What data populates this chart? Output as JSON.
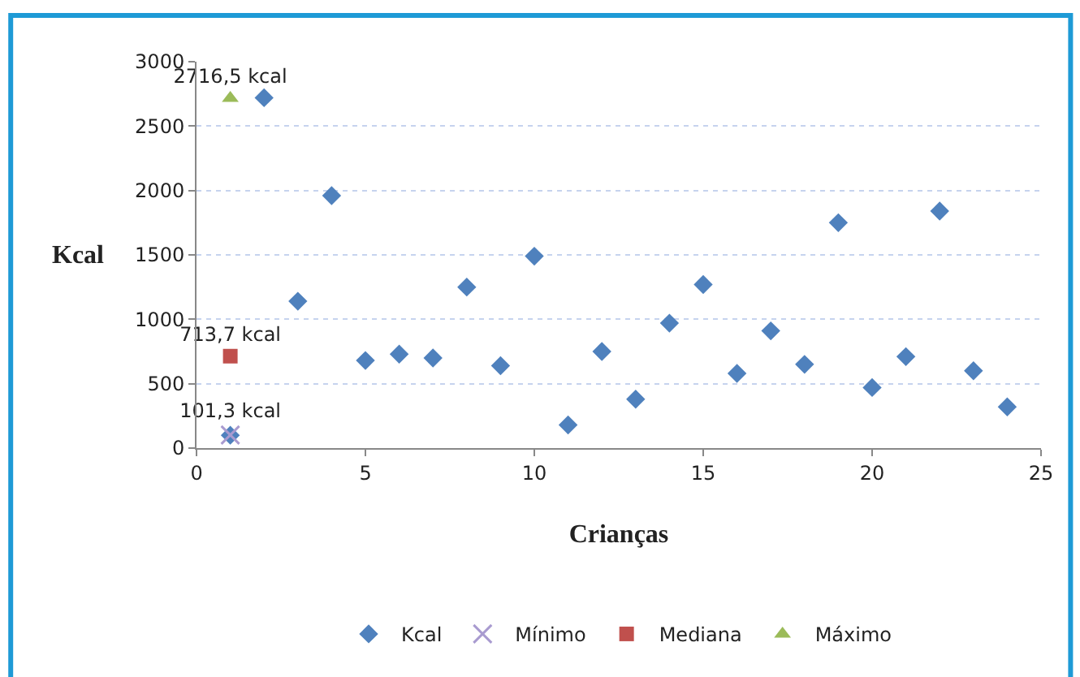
{
  "chart_data": {
    "type": "scatter",
    "xlabel": "Crianças",
    "ylabel": "Kcal",
    "xlim": [
      0,
      25
    ],
    "xticks": [
      0,
      5,
      10,
      15,
      20,
      25
    ],
    "ylim": [
      0,
      3000
    ],
    "yticks": [
      0,
      500,
      1000,
      1500,
      2000,
      2500,
      3000
    ],
    "grid": "y",
    "legend": "bottom",
    "series": [
      {
        "name": "Kcal",
        "color": "#4f81bd",
        "marker": "diamond",
        "x": [
          1,
          2,
          3,
          4,
          5,
          6,
          7,
          8,
          9,
          10,
          11,
          12,
          13,
          14,
          15,
          16,
          17,
          18,
          19,
          20,
          21,
          22,
          23,
          24
        ],
        "values": [
          100,
          2720,
          1140,
          1960,
          680,
          730,
          700,
          1250,
          640,
          1490,
          180,
          750,
          380,
          970,
          1270,
          580,
          910,
          650,
          1750,
          470,
          710,
          1840,
          600,
          320
        ]
      },
      {
        "name": "Mínimo",
        "color": "#a99bd0",
        "marker": "cross",
        "x": [
          1
        ],
        "values": [
          101.3
        ],
        "value_labels": [
          "101,3 kcal"
        ]
      },
      {
        "name": "Mediana",
        "color": "#c0504d",
        "marker": "square",
        "x": [
          1
        ],
        "values": [
          713.7
        ],
        "value_labels": [
          "713,7 kcal"
        ]
      },
      {
        "name": "Máximo",
        "color": "#9bbb59",
        "marker": "triangle",
        "x": [
          1
        ],
        "values": [
          2716.5
        ],
        "value_labels": [
          "2716,5 kcal"
        ]
      }
    ]
  }
}
